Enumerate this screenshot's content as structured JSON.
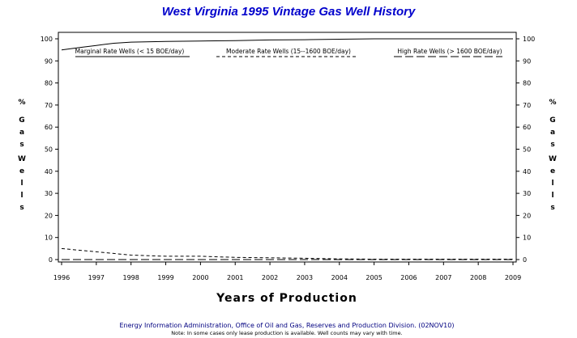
{
  "chart_data": {
    "type": "line",
    "title": "West Virginia 1995 Vintage Gas Well History",
    "xlabel": "Years of Production",
    "ylabel": "% Gas Wells",
    "x_ticks": [
      "1996",
      "1997",
      "1998",
      "1999",
      "2000",
      "2001",
      "2002",
      "2003",
      "2004",
      "2005",
      "2006",
      "2007",
      "2008",
      "2009"
    ],
    "xlim": [
      1996,
      2009
    ],
    "ylim": [
      0,
      100
    ],
    "y_ticks": [
      0,
      10,
      20,
      30,
      40,
      50,
      60,
      70,
      80,
      90,
      100
    ],
    "grid": false,
    "legend_position": "top",
    "series": [
      {
        "name": "Marginal Rate Wells (< 15 BOE/day)",
        "style": "solid",
        "x": [
          1996,
          1996.5,
          1997,
          1997.5,
          1998,
          1999,
          2000,
          2001,
          2002,
          2003,
          2004,
          2005,
          2006,
          2007,
          2008,
          2009
        ],
        "values": [
          95,
          96,
          97,
          98,
          98.5,
          98.8,
          99,
          99.2,
          99.5,
          99.6,
          99.8,
          100,
          100,
          100,
          100,
          100
        ]
      },
      {
        "name": "Moderate Rate Wells (15--1600 BOE/day)",
        "style": "dashed",
        "x": [
          1996,
          1997,
          1998,
          1999,
          2000,
          2001,
          2002,
          2003,
          2004,
          2005,
          2006,
          2007,
          2008,
          2009
        ],
        "values": [
          5,
          3.5,
          2,
          1.5,
          1.5,
          1,
          0.8,
          0.6,
          0.3,
          0.2,
          0.2,
          0.2,
          0.2,
          0.2
        ]
      },
      {
        "name": "High Rate Wells (> 1600 BOE/day)",
        "style": "longdash",
        "x": [
          1996,
          2009
        ],
        "values": [
          0,
          0
        ]
      }
    ]
  },
  "y_axis_label_chars": [
    "%",
    "G",
    "a",
    "s",
    "W",
    "e",
    "l",
    "l",
    "s"
  ],
  "footer": "Energy Information Administration, Office of Oil and Gas, Reserves and Production Division. (02NOV10)",
  "note": "Note: In some cases only lease production is available. Well counts may vary with time.",
  "colors": {
    "title": "#0000cc",
    "footer": "#000080",
    "axis": "#000000",
    "lines": "#000000"
  }
}
